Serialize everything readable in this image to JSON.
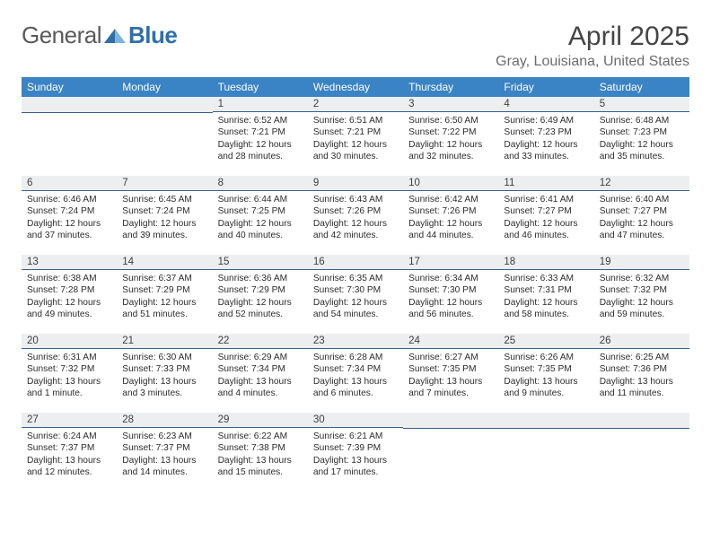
{
  "brand": {
    "general": "General",
    "blue": "Blue"
  },
  "title": "April 2025",
  "location": "Gray, Louisiana, United States",
  "colors": {
    "header_bg": "#3a83c4",
    "header_text": "#ffffff",
    "daynum_bg": "#eceef0",
    "daynum_border": "#3a5f88",
    "body_text": "#2c2c2c",
    "location_text": "#6b6b6b",
    "logo_gray": "#5a5a5a",
    "logo_blue": "#2f6fa9"
  },
  "days_of_week": [
    "Sunday",
    "Monday",
    "Tuesday",
    "Wednesday",
    "Thursday",
    "Friday",
    "Saturday"
  ],
  "weeks": [
    [
      null,
      null,
      {
        "n": "1",
        "sr": "6:52 AM",
        "ss": "7:21 PM",
        "dl": "12 hours and 28 minutes."
      },
      {
        "n": "2",
        "sr": "6:51 AM",
        "ss": "7:21 PM",
        "dl": "12 hours and 30 minutes."
      },
      {
        "n": "3",
        "sr": "6:50 AM",
        "ss": "7:22 PM",
        "dl": "12 hours and 32 minutes."
      },
      {
        "n": "4",
        "sr": "6:49 AM",
        "ss": "7:23 PM",
        "dl": "12 hours and 33 minutes."
      },
      {
        "n": "5",
        "sr": "6:48 AM",
        "ss": "7:23 PM",
        "dl": "12 hours and 35 minutes."
      }
    ],
    [
      {
        "n": "6",
        "sr": "6:46 AM",
        "ss": "7:24 PM",
        "dl": "12 hours and 37 minutes."
      },
      {
        "n": "7",
        "sr": "6:45 AM",
        "ss": "7:24 PM",
        "dl": "12 hours and 39 minutes."
      },
      {
        "n": "8",
        "sr": "6:44 AM",
        "ss": "7:25 PM",
        "dl": "12 hours and 40 minutes."
      },
      {
        "n": "9",
        "sr": "6:43 AM",
        "ss": "7:26 PM",
        "dl": "12 hours and 42 minutes."
      },
      {
        "n": "10",
        "sr": "6:42 AM",
        "ss": "7:26 PM",
        "dl": "12 hours and 44 minutes."
      },
      {
        "n": "11",
        "sr": "6:41 AM",
        "ss": "7:27 PM",
        "dl": "12 hours and 46 minutes."
      },
      {
        "n": "12",
        "sr": "6:40 AM",
        "ss": "7:27 PM",
        "dl": "12 hours and 47 minutes."
      }
    ],
    [
      {
        "n": "13",
        "sr": "6:38 AM",
        "ss": "7:28 PM",
        "dl": "12 hours and 49 minutes."
      },
      {
        "n": "14",
        "sr": "6:37 AM",
        "ss": "7:29 PM",
        "dl": "12 hours and 51 minutes."
      },
      {
        "n": "15",
        "sr": "6:36 AM",
        "ss": "7:29 PM",
        "dl": "12 hours and 52 minutes."
      },
      {
        "n": "16",
        "sr": "6:35 AM",
        "ss": "7:30 PM",
        "dl": "12 hours and 54 minutes."
      },
      {
        "n": "17",
        "sr": "6:34 AM",
        "ss": "7:30 PM",
        "dl": "12 hours and 56 minutes."
      },
      {
        "n": "18",
        "sr": "6:33 AM",
        "ss": "7:31 PM",
        "dl": "12 hours and 58 minutes."
      },
      {
        "n": "19",
        "sr": "6:32 AM",
        "ss": "7:32 PM",
        "dl": "12 hours and 59 minutes."
      }
    ],
    [
      {
        "n": "20",
        "sr": "6:31 AM",
        "ss": "7:32 PM",
        "dl": "13 hours and 1 minute."
      },
      {
        "n": "21",
        "sr": "6:30 AM",
        "ss": "7:33 PM",
        "dl": "13 hours and 3 minutes."
      },
      {
        "n": "22",
        "sr": "6:29 AM",
        "ss": "7:34 PM",
        "dl": "13 hours and 4 minutes."
      },
      {
        "n": "23",
        "sr": "6:28 AM",
        "ss": "7:34 PM",
        "dl": "13 hours and 6 minutes."
      },
      {
        "n": "24",
        "sr": "6:27 AM",
        "ss": "7:35 PM",
        "dl": "13 hours and 7 minutes."
      },
      {
        "n": "25",
        "sr": "6:26 AM",
        "ss": "7:35 PM",
        "dl": "13 hours and 9 minutes."
      },
      {
        "n": "26",
        "sr": "6:25 AM",
        "ss": "7:36 PM",
        "dl": "13 hours and 11 minutes."
      }
    ],
    [
      {
        "n": "27",
        "sr": "6:24 AM",
        "ss": "7:37 PM",
        "dl": "13 hours and 12 minutes."
      },
      {
        "n": "28",
        "sr": "6:23 AM",
        "ss": "7:37 PM",
        "dl": "13 hours and 14 minutes."
      },
      {
        "n": "29",
        "sr": "6:22 AM",
        "ss": "7:38 PM",
        "dl": "13 hours and 15 minutes."
      },
      {
        "n": "30",
        "sr": "6:21 AM",
        "ss": "7:39 PM",
        "dl": "13 hours and 17 minutes."
      },
      null,
      null,
      null
    ]
  ],
  "labels": {
    "sunrise": "Sunrise:",
    "sunset": "Sunset:",
    "daylight": "Daylight:"
  }
}
